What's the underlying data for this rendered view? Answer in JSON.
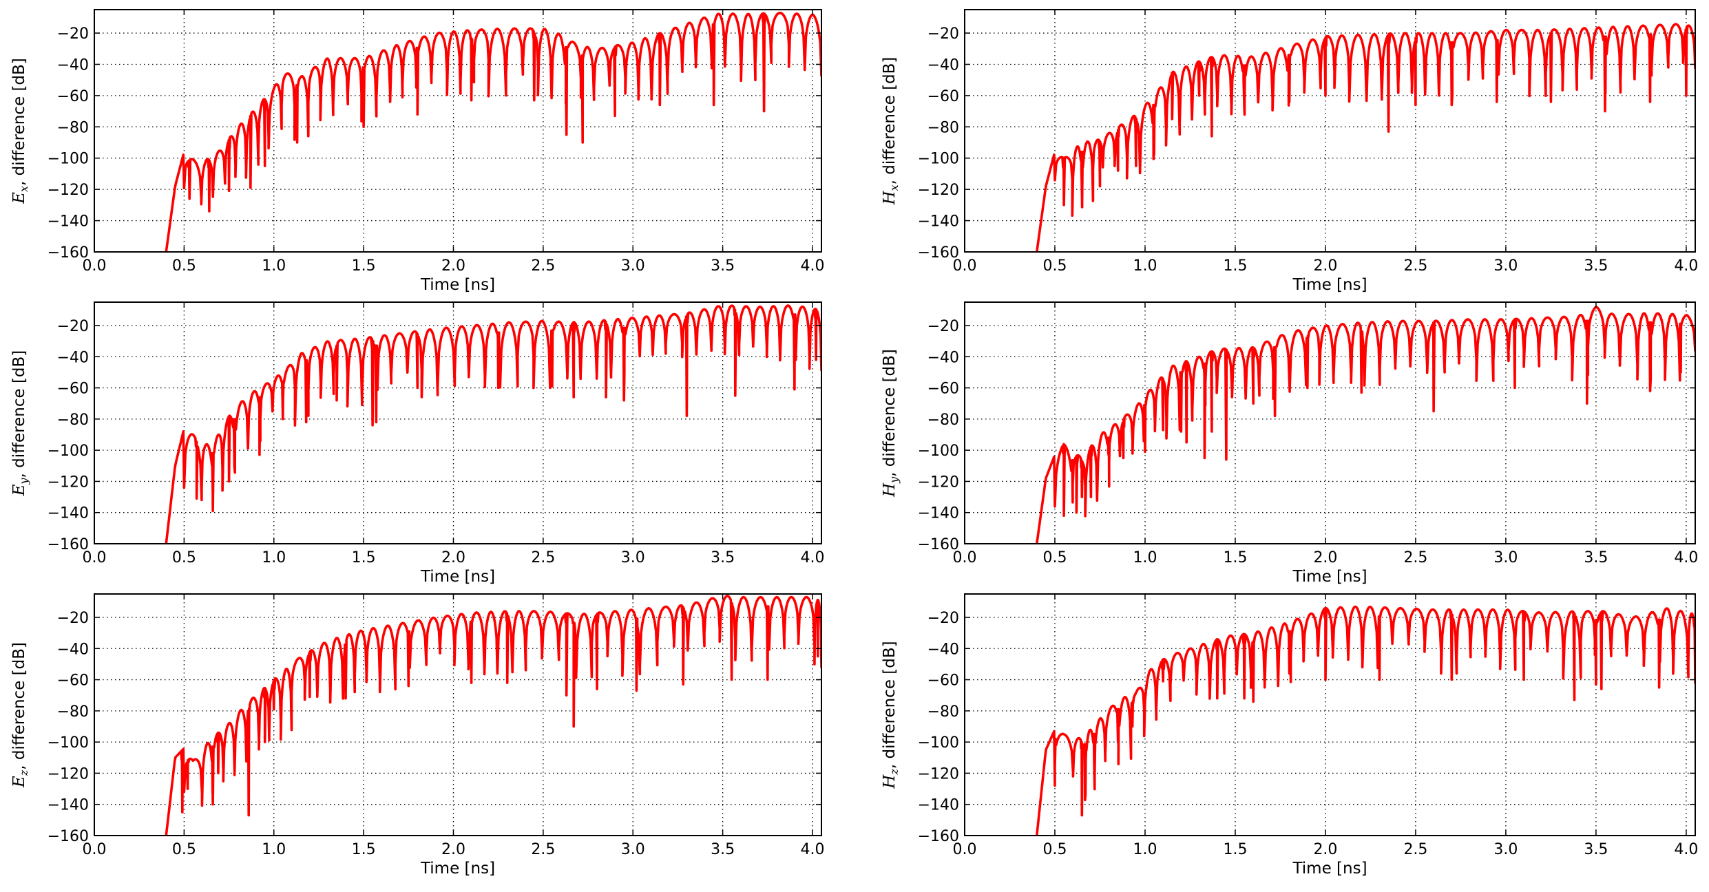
{
  "chart_data": [
    {
      "type": "line",
      "panel": "Ex",
      "xlabel": "Time [ns]",
      "ylabel_symbol": "E",
      "ylabel_subscript": "x",
      "ylabel_rest": ", difference [dB]",
      "xlim": [
        0.0,
        4.05
      ],
      "ylim": [
        -160,
        -5
      ],
      "grid": true,
      "xticks": [
        "0.0",
        "0.5",
        "1.0",
        "1.5",
        "2.0",
        "2.5",
        "3.0",
        "3.5",
        "4.0"
      ],
      "yticks": [
        "−20",
        "−40",
        "−60",
        "−80",
        "−100",
        "−120",
        "−140",
        "−160"
      ],
      "series": [
        {
          "color": "#ff0000",
          "x": [
            0.4,
            0.45,
            0.5,
            0.53,
            0.6,
            0.7,
            0.8,
            0.9,
            1.0,
            1.05,
            1.15,
            1.3,
            1.5,
            1.7,
            1.9,
            2.1,
            2.3,
            2.5,
            2.6,
            2.7,
            2.8,
            3.0,
            3.2,
            3.4,
            3.5,
            3.6,
            3.8,
            4.0,
            4.05
          ],
          "y": [
            -160,
            -118,
            -96,
            -100,
            -103,
            -95,
            -80,
            -68,
            -55,
            -45,
            -48,
            -36,
            -36,
            -27,
            -20,
            -18,
            -17,
            -17,
            -21,
            -28,
            -30,
            -26,
            -18,
            -10,
            -7,
            -8,
            -7,
            -8,
            -12
          ],
          "dips": [
            [
              0.53,
              -126
            ],
            [
              0.64,
              -134
            ],
            [
              0.75,
              -121
            ],
            [
              0.87,
              -119
            ],
            [
              0.95,
              -105
            ],
            [
              1.13,
              -90
            ],
            [
              1.5,
              -80
            ],
            [
              1.8,
              -72
            ],
            [
              2.1,
              -63
            ],
            [
              2.45,
              -63
            ],
            [
              2.63,
              -85
            ],
            [
              2.72,
              -90
            ],
            [
              2.9,
              -73
            ],
            [
              3.15,
              -66
            ],
            [
              3.45,
              -66
            ],
            [
              3.73,
              -70
            ]
          ]
        }
      ]
    },
    {
      "type": "line",
      "panel": "Hx",
      "xlabel": "Time [ns]",
      "ylabel_symbol": "H",
      "ylabel_subscript": "x",
      "ylabel_rest": ", difference [dB]",
      "xlim": [
        0.0,
        4.05
      ],
      "ylim": [
        -160,
        -5
      ],
      "grid": true,
      "xticks": [
        "0.0",
        "0.5",
        "1.0",
        "1.5",
        "2.0",
        "2.5",
        "3.0",
        "3.5",
        "4.0"
      ],
      "yticks": [
        "−20",
        "−40",
        "−60",
        "−80",
        "−100",
        "−120",
        "−140",
        "−160"
      ],
      "series": [
        {
          "color": "#ff0000",
          "x": [
            0.4,
            0.45,
            0.5,
            0.55,
            0.65,
            0.75,
            0.85,
            0.95,
            1.05,
            1.15,
            1.3,
            1.4,
            1.6,
            1.8,
            2.0,
            2.2,
            2.4,
            2.6,
            2.8,
            3.0,
            3.2,
            3.4,
            3.6,
            3.8,
            4.0,
            4.05
          ],
          "y": [
            -160,
            -118,
            -96,
            -100,
            -90,
            -88,
            -80,
            -72,
            -60,
            -45,
            -38,
            -34,
            -35,
            -28,
            -22,
            -21,
            -20,
            -20,
            -20,
            -18,
            -18,
            -17,
            -16,
            -15,
            -14,
            -18
          ],
          "dips": [
            [
              0.55,
              -130
            ],
            [
              0.65,
              -122
            ],
            [
              0.75,
              -118
            ],
            [
              0.85,
              -108
            ],
            [
              0.95,
              -105
            ],
            [
              1.05,
              -98
            ],
            [
              1.15,
              -75
            ],
            [
              1.3,
              -60
            ],
            [
              1.37,
              -86
            ],
            [
              1.55,
              -67
            ],
            [
              1.8,
              -64
            ],
            [
              2.0,
              -60
            ],
            [
              2.35,
              -83
            ],
            [
              2.5,
              -66
            ],
            [
              2.7,
              -66
            ],
            [
              2.95,
              -64
            ],
            [
              3.25,
              -64
            ],
            [
              3.55,
              -70
            ],
            [
              3.8,
              -64
            ],
            [
              4.0,
              -60
            ]
          ]
        }
      ]
    },
    {
      "type": "line",
      "panel": "Ey",
      "xlabel": "Time [ns]",
      "ylabel_symbol": "E",
      "ylabel_subscript": "y",
      "ylabel_rest": ", difference [dB]",
      "xlim": [
        0.0,
        4.05
      ],
      "ylim": [
        -160,
        -5
      ],
      "grid": true,
      "xticks": [
        "0.0",
        "0.5",
        "1.0",
        "1.5",
        "2.0",
        "2.5",
        "3.0",
        "3.5",
        "4.0"
      ],
      "yticks": [
        "−20",
        "−40",
        "−60",
        "−80",
        "−100",
        "−120",
        "−140",
        "−160"
      ],
      "series": [
        {
          "color": "#ff0000",
          "x": [
            0.4,
            0.45,
            0.5,
            0.55,
            0.65,
            0.75,
            0.85,
            0.95,
            1.05,
            1.15,
            1.3,
            1.5,
            1.7,
            1.9,
            2.1,
            2.3,
            2.5,
            2.7,
            2.9,
            3.1,
            3.3,
            3.5,
            3.7,
            3.9,
            4.05
          ],
          "y": [
            -160,
            -110,
            -86,
            -90,
            -98,
            -78,
            -65,
            -58,
            -50,
            -38,
            -30,
            -28,
            -25,
            -22,
            -20,
            -18,
            -17,
            -18,
            -16,
            -14,
            -12,
            -7,
            -8,
            -7,
            -10
          ],
          "dips": [
            [
              0.57,
              -131
            ],
            [
              0.66,
              -139
            ],
            [
              0.75,
              -120
            ],
            [
              0.78,
              -110
            ],
            [
              0.92,
              -103
            ],
            [
              1.05,
              -80
            ],
            [
              1.18,
              -82
            ],
            [
              1.35,
              -68
            ],
            [
              1.55,
              -84
            ],
            [
              1.57,
              -82
            ],
            [
              1.8,
              -60
            ],
            [
              2.25,
              -60
            ],
            [
              2.55,
              -59
            ],
            [
              2.67,
              -66
            ],
            [
              2.85,
              -66
            ],
            [
              2.95,
              -68
            ],
            [
              3.3,
              -78
            ],
            [
              3.57,
              -65
            ],
            [
              3.9,
              -61
            ],
            [
              4.02,
              -42
            ]
          ]
        }
      ]
    },
    {
      "type": "line",
      "panel": "Hy",
      "xlabel": "Time [ns]",
      "ylabel_symbol": "H",
      "ylabel_subscript": "y",
      "ylabel_rest": ", difference [dB]",
      "xlim": [
        0.0,
        4.05
      ],
      "ylim": [
        -160,
        -5
      ],
      "grid": true,
      "xticks": [
        "0.0",
        "0.5",
        "1.0",
        "1.5",
        "2.0",
        "2.5",
        "3.0",
        "3.5",
        "4.0"
      ],
      "yticks": [
        "−20",
        "−40",
        "−60",
        "−80",
        "−100",
        "−120",
        "−140",
        "−160"
      ],
      "series": [
        {
          "color": "#ff0000",
          "x": [
            0.4,
            0.45,
            0.5,
            0.55,
            0.65,
            0.75,
            0.85,
            0.95,
            1.05,
            1.15,
            1.3,
            1.4,
            1.6,
            1.8,
            2.0,
            2.2,
            2.4,
            2.6,
            2.8,
            3.0,
            3.2,
            3.4,
            3.5,
            3.6,
            3.8,
            4.0,
            4.05
          ],
          "y": [
            -160,
            -118,
            -103,
            -96,
            -105,
            -90,
            -82,
            -72,
            -58,
            -46,
            -40,
            -35,
            -34,
            -24,
            -20,
            -18,
            -17,
            -17,
            -16,
            -16,
            -15,
            -14,
            -8,
            -13,
            -12,
            -13,
            -18
          ],
          "dips": [
            [
              0.55,
              -142
            ],
            [
              0.6,
              -120
            ],
            [
              0.62,
              -140
            ],
            [
              0.65,
              -130
            ],
            [
              0.7,
              -130
            ],
            [
              0.8,
              -104
            ],
            [
              0.88,
              -105
            ],
            [
              1.0,
              -101
            ],
            [
              1.1,
              -87
            ],
            [
              1.2,
              -88
            ],
            [
              1.23,
              -95
            ],
            [
              1.33,
              -105
            ],
            [
              1.37,
              -88
            ],
            [
              1.45,
              -106
            ],
            [
              1.6,
              -70
            ],
            [
              1.72,
              -78
            ],
            [
              1.9,
              -60
            ],
            [
              2.2,
              -63
            ],
            [
              2.6,
              -75
            ],
            [
              3.05,
              -60
            ],
            [
              3.45,
              -70
            ],
            [
              3.8,
              -62
            ],
            [
              3.97,
              -50
            ]
          ]
        }
      ]
    },
    {
      "type": "line",
      "panel": "Ez",
      "xlabel": "Time [ns]",
      "ylabel_symbol": "E",
      "ylabel_subscript": "z",
      "ylabel_rest": ", difference [dB]",
      "xlim": [
        0.0,
        4.05
      ],
      "ylim": [
        -160,
        -5
      ],
      "grid": true,
      "xticks": [
        "0.0",
        "0.5",
        "1.0",
        "1.5",
        "2.0",
        "2.5",
        "3.0",
        "3.5",
        "4.0"
      ],
      "yticks": [
        "−20",
        "−40",
        "−60",
        "−80",
        "−100",
        "−120",
        "−140",
        "−160"
      ],
      "series": [
        {
          "color": "#ff0000",
          "x": [
            0.4,
            0.45,
            0.5,
            0.55,
            0.65,
            0.75,
            0.85,
            0.95,
            1.05,
            1.15,
            1.3,
            1.5,
            1.7,
            1.9,
            2.1,
            2.3,
            2.5,
            2.7,
            2.9,
            3.1,
            3.3,
            3.5,
            3.6,
            3.8,
            4.0,
            4.05
          ],
          "y": [
            -160,
            -110,
            -104,
            -112,
            -98,
            -88,
            -75,
            -65,
            -55,
            -45,
            -35,
            -28,
            -24,
            -20,
            -17,
            -16,
            -16,
            -18,
            -16,
            -14,
            -12,
            -6,
            -7,
            -7,
            -7,
            -10
          ],
          "dips": [
            [
              0.49,
              -145
            ],
            [
              0.52,
              -130
            ],
            [
              0.66,
              -140
            ],
            [
              0.69,
              -120
            ],
            [
              0.86,
              -147
            ],
            [
              0.95,
              -100
            ],
            [
              1.0,
              -79
            ],
            [
              1.2,
              -71
            ],
            [
              1.4,
              -72
            ],
            [
              1.75,
              -64
            ],
            [
              2.1,
              -62
            ],
            [
              2.3,
              -62
            ],
            [
              2.63,
              -70
            ],
            [
              2.67,
              -90
            ],
            [
              2.8,
              -66
            ],
            [
              3.02,
              -67
            ],
            [
              3.28,
              -63
            ],
            [
              3.55,
              -60
            ],
            [
              3.75,
              -60
            ],
            [
              4.03,
              -45
            ]
          ]
        }
      ]
    },
    {
      "type": "line",
      "panel": "Hz",
      "xlabel": "Time [ns]",
      "ylabel_symbol": "H",
      "ylabel_subscript": "z",
      "ylabel_rest": ", difference [dB]",
      "xlim": [
        0.0,
        4.05
      ],
      "ylim": [
        -160,
        -5
      ],
      "grid": true,
      "xticks": [
        "0.0",
        "0.5",
        "1.0",
        "1.5",
        "2.0",
        "2.5",
        "3.0",
        "3.5",
        "4.0"
      ],
      "yticks": [
        "−20",
        "−40",
        "−60",
        "−80",
        "−100",
        "−120",
        "−140",
        "−160"
      ],
      "series": [
        {
          "color": "#ff0000",
          "x": [
            0.4,
            0.45,
            0.5,
            0.55,
            0.65,
            0.75,
            0.85,
            0.95,
            1.05,
            1.15,
            1.3,
            1.45,
            1.6,
            1.8,
            2.0,
            2.2,
            2.4,
            2.6,
            2.8,
            3.0,
            3.2,
            3.4,
            3.55,
            3.7,
            3.9,
            4.05
          ],
          "y": [
            -160,
            -105,
            -92,
            -95,
            -98,
            -85,
            -73,
            -68,
            -50,
            -44,
            -38,
            -32,
            -30,
            -23,
            -14,
            -13,
            -14,
            -15,
            -15,
            -15,
            -17,
            -16,
            -16,
            -20,
            -14,
            -18
          ],
          "dips": [
            [
              0.5,
              -128
            ],
            [
              0.65,
              -147
            ],
            [
              0.67,
              -134
            ],
            [
              0.72,
              -127
            ],
            [
              0.85,
              -100
            ],
            [
              0.93,
              -90
            ],
            [
              1.1,
              -61
            ],
            [
              1.4,
              -72
            ],
            [
              1.55,
              -72
            ],
            [
              1.6,
              -74
            ],
            [
              1.8,
              -56
            ],
            [
              2.0,
              -60
            ],
            [
              2.3,
              -60
            ],
            [
              2.7,
              -60
            ],
            [
              3.1,
              -60
            ],
            [
              3.38,
              -73
            ],
            [
              3.5,
              -63
            ],
            [
              3.53,
              -66
            ],
            [
              3.85,
              -65
            ],
            [
              4.05,
              -62
            ]
          ]
        }
      ]
    }
  ]
}
